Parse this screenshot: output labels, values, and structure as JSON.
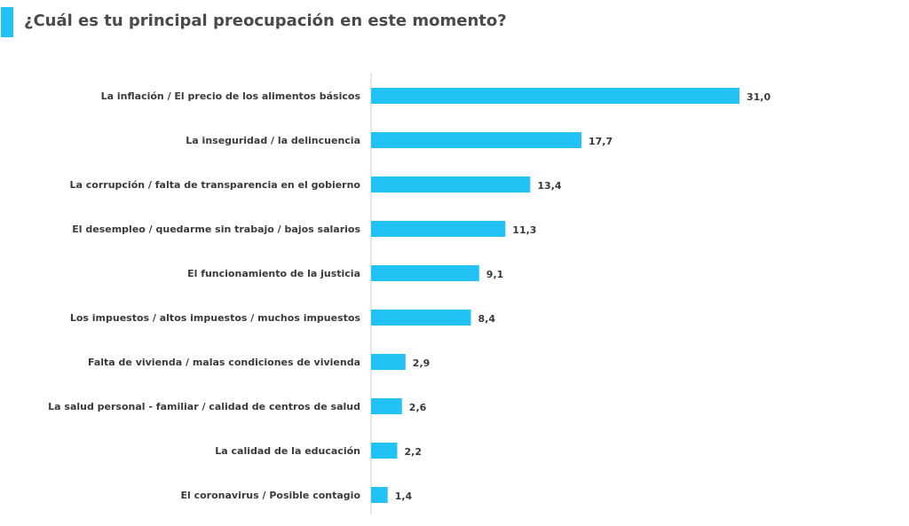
{
  "title": "¿Cuál es tu principal preocupación en este momento?",
  "colors": {
    "accent": "#22c3f4",
    "bar": "#22c3f4",
    "axis": "#cfcfcf",
    "text": "#3a3a3a"
  },
  "chart_data": {
    "type": "bar",
    "orientation": "horizontal",
    "categories": [
      "La inflación / El precio de los alimentos básicos",
      "La inseguridad / la delincuencia",
      "La corrupción / falta de transparencia en el gobierno",
      "El desempleo / quedarme sin trabajo / bajos salarios",
      "El funcionamiento de la justicia",
      "Los impuestos / altos impuestos / muchos impuestos",
      "Falta de vivienda / malas condiciones de vivienda",
      "La salud personal - familiar / calidad de centros de salud",
      "La calidad de la educación",
      "El coronavirus / Posible contagio"
    ],
    "values": [
      31.0,
      17.7,
      13.4,
      11.3,
      9.1,
      8.4,
      2.9,
      2.6,
      2.2,
      1.4
    ],
    "value_labels": [
      "31,0",
      "17,7",
      "13,4",
      "11,3",
      "9,1",
      "8,4",
      "2,9",
      "2,6",
      "2,2",
      "1,4"
    ],
    "xlim": [
      0,
      31.0
    ],
    "grid": false,
    "legend": "none"
  }
}
